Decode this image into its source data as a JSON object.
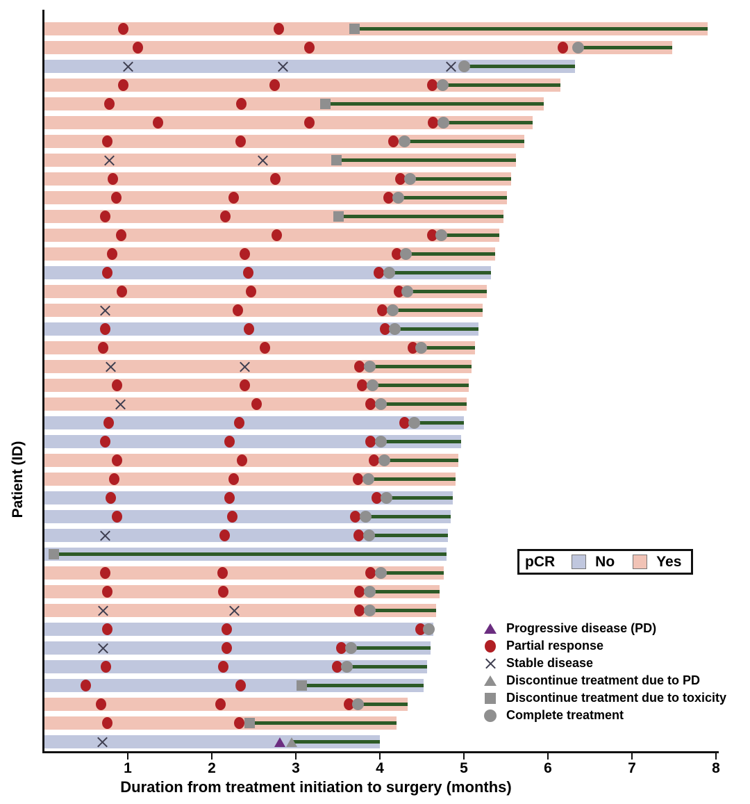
{
  "figure": {
    "y_axis_label": "Patient (ID)",
    "x_axis_label": "Duration from treatment initiation to surgery (months)",
    "x_ticks": [
      "1",
      "2",
      "3",
      "4",
      "5",
      "6",
      "7",
      "8"
    ]
  },
  "pcr_legend": {
    "title": "pCR",
    "items": [
      {
        "label": "No",
        "color": "#c0c7de"
      },
      {
        "label": "Yes",
        "color": "#f1c3b6"
      }
    ]
  },
  "marker_legend": [
    {
      "icon": "triangle-purple",
      "label": "Progressive disease (PD)"
    },
    {
      "icon": "circle-red",
      "label": "Partial response"
    },
    {
      "icon": "x-mark",
      "label": "Stable disease"
    },
    {
      "icon": "triangle-gray",
      "label": "Discontinue treatment due to PD"
    },
    {
      "icon": "square-gray",
      "label": "Discontinue treatment due to toxicity"
    },
    {
      "icon": "circle-gray",
      "label": "Complete treatment"
    }
  ],
  "chart_data": {
    "type": "bar",
    "subtype": "swimmer-plot",
    "title": "",
    "xlabel": "Duration from treatment initiation to surgery (months)",
    "ylabel": "Patient (ID)",
    "xlim": [
      0,
      8
    ],
    "x_ticks": [
      1,
      2,
      3,
      4,
      5,
      6,
      7,
      8
    ],
    "grid": false,
    "legend_position": "lower-right",
    "colors": {
      "pcr_yes": "#f1c3b6",
      "pcr_no": "#c0c7de",
      "partial_response": "#b01f24",
      "stable_disease": "#3e3e50",
      "progressive_disease": "#6b2d80",
      "discontinue_gray": "#8f8f8f",
      "post_treatment_line": "#2d5a27",
      "axis": "#111111"
    },
    "event_types": {
      "pr": "partial response",
      "sd": "stable disease",
      "pd": "progressive disease"
    },
    "stop_types": {
      "comp": "complete treatment",
      "tox": "discontinue due to toxicity",
      "dpd": "discontinue due to PD"
    },
    "rows": [
      {
        "pcr": "Yes",
        "end": 7.9,
        "events": [
          {
            "type": "pr",
            "x": 0.95
          },
          {
            "type": "pr",
            "x": 2.8
          }
        ],
        "stop": {
          "type": "tox",
          "x": 3.7
        }
      },
      {
        "pcr": "Yes",
        "end": 7.48,
        "events": [
          {
            "type": "pr",
            "x": 1.12
          },
          {
            "type": "pr",
            "x": 3.16
          },
          {
            "type": "pr",
            "x": 6.18
          }
        ],
        "stop": {
          "type": "comp",
          "x": 6.36
        }
      },
      {
        "pcr": "No",
        "end": 6.32,
        "events": [
          {
            "type": "sd",
            "x": 1.0
          },
          {
            "type": "sd",
            "x": 2.85
          },
          {
            "type": "sd",
            "x": 4.85
          }
        ],
        "stop": {
          "type": "comp",
          "x": 5.0
        }
      },
      {
        "pcr": "Yes",
        "end": 6.15,
        "events": [
          {
            "type": "pr",
            "x": 0.95
          },
          {
            "type": "pr",
            "x": 2.75
          },
          {
            "type": "pr",
            "x": 4.62
          }
        ],
        "stop": {
          "type": "comp",
          "x": 4.75
        }
      },
      {
        "pcr": "Yes",
        "end": 5.95,
        "events": [
          {
            "type": "pr",
            "x": 0.78
          },
          {
            "type": "pr",
            "x": 2.35
          }
        ],
        "stop": {
          "type": "tox",
          "x": 3.35
        }
      },
      {
        "pcr": "Yes",
        "end": 5.82,
        "events": [
          {
            "type": "pr",
            "x": 1.36
          },
          {
            "type": "pr",
            "x": 3.16
          },
          {
            "type": "pr",
            "x": 4.63
          }
        ],
        "stop": {
          "type": "comp",
          "x": 4.76
        }
      },
      {
        "pcr": "Yes",
        "end": 5.72,
        "events": [
          {
            "type": "pr",
            "x": 0.76
          },
          {
            "type": "pr",
            "x": 2.34
          },
          {
            "type": "pr",
            "x": 4.16
          }
        ],
        "stop": {
          "type": "comp",
          "x": 4.29
        }
      },
      {
        "pcr": "Yes",
        "end": 5.62,
        "events": [
          {
            "type": "sd",
            "x": 0.78
          },
          {
            "type": "sd",
            "x": 2.61
          }
        ],
        "stop": {
          "type": "tox",
          "x": 3.48
        }
      },
      {
        "pcr": "Yes",
        "end": 5.56,
        "events": [
          {
            "type": "pr",
            "x": 0.82
          },
          {
            "type": "pr",
            "x": 2.76
          },
          {
            "type": "pr",
            "x": 4.24
          }
        ],
        "stop": {
          "type": "comp",
          "x": 4.36
        }
      },
      {
        "pcr": "Yes",
        "end": 5.51,
        "events": [
          {
            "type": "pr",
            "x": 0.86
          },
          {
            "type": "pr",
            "x": 2.26
          },
          {
            "type": "pr",
            "x": 4.1
          }
        ],
        "stop": {
          "type": "comp",
          "x": 4.22
        }
      },
      {
        "pcr": "Yes",
        "end": 5.47,
        "events": [
          {
            "type": "pr",
            "x": 0.73
          },
          {
            "type": "pr",
            "x": 2.16
          }
        ],
        "stop": {
          "type": "tox",
          "x": 3.51
        }
      },
      {
        "pcr": "Yes",
        "end": 5.42,
        "events": [
          {
            "type": "pr",
            "x": 0.92
          },
          {
            "type": "pr",
            "x": 2.77
          },
          {
            "type": "pr",
            "x": 4.62
          }
        ],
        "stop": {
          "type": "comp",
          "x": 4.73
        }
      },
      {
        "pcr": "Yes",
        "end": 5.37,
        "events": [
          {
            "type": "pr",
            "x": 0.81
          },
          {
            "type": "pr",
            "x": 2.39
          },
          {
            "type": "pr",
            "x": 4.2
          }
        ],
        "stop": {
          "type": "comp",
          "x": 4.31
        }
      },
      {
        "pcr": "No",
        "end": 5.32,
        "events": [
          {
            "type": "pr",
            "x": 0.76
          },
          {
            "type": "pr",
            "x": 2.43
          },
          {
            "type": "pr",
            "x": 3.99
          }
        ],
        "stop": {
          "type": "comp",
          "x": 4.11
        }
      },
      {
        "pcr": "Yes",
        "end": 5.27,
        "events": [
          {
            "type": "pr",
            "x": 0.93
          },
          {
            "type": "pr",
            "x": 2.47
          },
          {
            "type": "pr",
            "x": 4.23
          }
        ],
        "stop": {
          "type": "comp",
          "x": 4.33
        }
      },
      {
        "pcr": "Yes",
        "end": 5.22,
        "events": [
          {
            "type": "sd",
            "x": 0.73
          },
          {
            "type": "pr",
            "x": 2.31
          },
          {
            "type": "pr",
            "x": 4.03
          }
        ],
        "stop": {
          "type": "comp",
          "x": 4.15
        }
      },
      {
        "pcr": "No",
        "end": 5.17,
        "events": [
          {
            "type": "pr",
            "x": 0.73
          },
          {
            "type": "pr",
            "x": 2.44
          },
          {
            "type": "pr",
            "x": 4.06
          }
        ],
        "stop": {
          "type": "comp",
          "x": 4.18
        }
      },
      {
        "pcr": "Yes",
        "end": 5.13,
        "events": [
          {
            "type": "pr",
            "x": 0.71
          },
          {
            "type": "pr",
            "x": 2.63
          },
          {
            "type": "pr",
            "x": 4.39
          }
        ],
        "stop": {
          "type": "comp",
          "x": 4.49
        }
      },
      {
        "pcr": "Yes",
        "end": 5.09,
        "events": [
          {
            "type": "sd",
            "x": 0.8
          },
          {
            "type": "sd",
            "x": 2.39
          },
          {
            "type": "pr",
            "x": 3.76
          }
        ],
        "stop": {
          "type": "comp",
          "x": 3.88
        }
      },
      {
        "pcr": "Yes",
        "end": 5.06,
        "events": [
          {
            "type": "pr",
            "x": 0.87
          },
          {
            "type": "pr",
            "x": 2.39
          },
          {
            "type": "pr",
            "x": 3.79
          }
        ],
        "stop": {
          "type": "comp",
          "x": 3.91
        }
      },
      {
        "pcr": "Yes",
        "end": 5.03,
        "events": [
          {
            "type": "sd",
            "x": 0.91
          },
          {
            "type": "pr",
            "x": 2.53
          },
          {
            "type": "pr",
            "x": 3.89
          }
        ],
        "stop": {
          "type": "comp",
          "x": 4.01
        }
      },
      {
        "pcr": "No",
        "end": 5.0,
        "events": [
          {
            "type": "pr",
            "x": 0.77
          },
          {
            "type": "pr",
            "x": 2.33
          },
          {
            "type": "pr",
            "x": 4.29
          }
        ],
        "stop": {
          "type": "comp",
          "x": 4.41
        }
      },
      {
        "pcr": "No",
        "end": 4.97,
        "events": [
          {
            "type": "pr",
            "x": 0.73
          },
          {
            "type": "pr",
            "x": 2.21
          },
          {
            "type": "pr",
            "x": 3.89
          }
        ],
        "stop": {
          "type": "comp",
          "x": 4.01
        }
      },
      {
        "pcr": "Yes",
        "end": 4.93,
        "events": [
          {
            "type": "pr",
            "x": 0.87
          },
          {
            "type": "pr",
            "x": 2.36
          },
          {
            "type": "pr",
            "x": 3.93
          }
        ],
        "stop": {
          "type": "comp",
          "x": 4.05
        }
      },
      {
        "pcr": "Yes",
        "end": 4.9,
        "events": [
          {
            "type": "pr",
            "x": 0.84
          },
          {
            "type": "pr",
            "x": 2.26
          },
          {
            "type": "pr",
            "x": 3.74
          }
        ],
        "stop": {
          "type": "comp",
          "x": 3.86
        }
      },
      {
        "pcr": "No",
        "end": 4.87,
        "events": [
          {
            "type": "pr",
            "x": 0.8
          },
          {
            "type": "pr",
            "x": 2.21
          },
          {
            "type": "pr",
            "x": 3.96
          }
        ],
        "stop": {
          "type": "comp",
          "x": 4.08
        }
      },
      {
        "pcr": "No",
        "end": 4.84,
        "events": [
          {
            "type": "pr",
            "x": 0.87
          },
          {
            "type": "pr",
            "x": 2.24
          },
          {
            "type": "pr",
            "x": 3.71
          }
        ],
        "stop": {
          "type": "comp",
          "x": 3.83
        }
      },
      {
        "pcr": "No",
        "end": 4.81,
        "events": [
          {
            "type": "sd",
            "x": 0.73
          },
          {
            "type": "pr",
            "x": 2.15
          },
          {
            "type": "pr",
            "x": 3.75
          }
        ],
        "stop": {
          "type": "comp",
          "x": 3.87
        }
      },
      {
        "pcr": "No",
        "end": 4.79,
        "events": [],
        "stop": {
          "type": "tox",
          "x": 0.12
        }
      },
      {
        "pcr": "Yes",
        "end": 4.76,
        "events": [
          {
            "type": "pr",
            "x": 0.73
          },
          {
            "type": "pr",
            "x": 2.13
          },
          {
            "type": "pr",
            "x": 3.89
          }
        ],
        "stop": {
          "type": "comp",
          "x": 4.01
        }
      },
      {
        "pcr": "Yes",
        "end": 4.71,
        "events": [
          {
            "type": "pr",
            "x": 0.76
          },
          {
            "type": "pr",
            "x": 2.14
          },
          {
            "type": "pr",
            "x": 3.76
          }
        ],
        "stop": {
          "type": "comp",
          "x": 3.88
        }
      },
      {
        "pcr": "Yes",
        "end": 4.67,
        "events": [
          {
            "type": "sd",
            "x": 0.71
          },
          {
            "type": "sd",
            "x": 2.27
          },
          {
            "type": "pr",
            "x": 3.76
          }
        ],
        "stop": {
          "type": "comp",
          "x": 3.88
        }
      },
      {
        "pcr": "No",
        "end": 4.64,
        "events": [
          {
            "type": "pr",
            "x": 0.76
          },
          {
            "type": "pr",
            "x": 2.18
          },
          {
            "type": "pr",
            "x": 4.48
          }
        ],
        "stop": {
          "type": "comp",
          "x": 4.58
        }
      },
      {
        "pcr": "No",
        "end": 4.6,
        "events": [
          {
            "type": "sd",
            "x": 0.71
          },
          {
            "type": "pr",
            "x": 2.18
          },
          {
            "type": "pr",
            "x": 3.54
          }
        ],
        "stop": {
          "type": "comp",
          "x": 3.66
        }
      },
      {
        "pcr": "No",
        "end": 4.56,
        "events": [
          {
            "type": "pr",
            "x": 0.74
          },
          {
            "type": "pr",
            "x": 2.14
          },
          {
            "type": "pr",
            "x": 3.49
          }
        ],
        "stop": {
          "type": "comp",
          "x": 3.61
        }
      },
      {
        "pcr": "No",
        "end": 4.52,
        "events": [
          {
            "type": "pr",
            "x": 0.5
          },
          {
            "type": "pr",
            "x": 2.34
          }
        ],
        "stop": {
          "type": "tox",
          "x": 3.07
        }
      },
      {
        "pcr": "Yes",
        "end": 4.33,
        "events": [
          {
            "type": "pr",
            "x": 0.68
          },
          {
            "type": "pr",
            "x": 2.1
          },
          {
            "type": "pr",
            "x": 3.63
          }
        ],
        "stop": {
          "type": "comp",
          "x": 3.74
        }
      },
      {
        "pcr": "Yes",
        "end": 4.2,
        "events": [
          {
            "type": "pr",
            "x": 0.76
          },
          {
            "type": "pr",
            "x": 2.33
          }
        ],
        "stop": {
          "type": "tox",
          "x": 2.45
        }
      },
      {
        "pcr": "No",
        "end": 4.0,
        "events": [
          {
            "type": "sd",
            "x": 0.7
          },
          {
            "type": "pd",
            "x": 2.81
          }
        ],
        "stop": {
          "type": "dpd",
          "x": 2.95
        }
      }
    ]
  }
}
